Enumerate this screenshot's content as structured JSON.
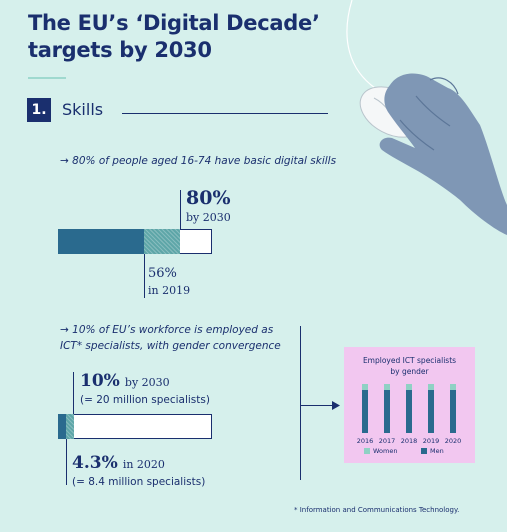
{
  "header": {
    "title": "The EU’s ‘Digital Decade’ targets by 2030"
  },
  "section": {
    "number": "1.",
    "label": "Skills"
  },
  "basic_skills": {
    "arrow": "→",
    "statement": "80% of people aged 16-74 have basic digital skills",
    "target_value": "80%",
    "target_year_label": "by 2030",
    "current_value": "56%",
    "current_year_label": "in 2019",
    "target_percent": 80,
    "current_percent": 56
  },
  "ict": {
    "arrow": "→",
    "statement_line1": "10% of EU’s workforce is employed as",
    "statement_line2": "ICT* specialists, with gender convergence",
    "target_value": "10%",
    "target_year_label": "by 2030",
    "target_note": "(= 20 million specialists)",
    "current_value": "4.3%",
    "current_year_label": "in 2020",
    "current_note": "(= 8.4 million specialists)",
    "target_percent": 10,
    "current_percent": 4.3
  },
  "gender_chart": {
    "title_line1": "Employed ICT specialists",
    "title_line2": "by gender",
    "years": [
      "2016",
      "2017",
      "2018",
      "2019",
      "2020"
    ],
    "legend_women": "Women",
    "legend_men": "Men",
    "colors": {
      "women": "#8fd1c4",
      "men": "#2a6a8e"
    }
  },
  "footnote": "* Information and Communications Technology.",
  "colors": {
    "background": "#d6f0ec",
    "navy": "#1a2f6e",
    "teal_dark": "#2a6a8e",
    "teal_light": "#5ea6a8",
    "panel_pink": "#f2c7f0"
  },
  "illustration": "hand-on-computer-mouse"
}
